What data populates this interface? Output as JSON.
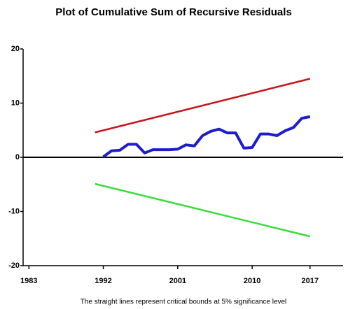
{
  "chart_data": {
    "type": "line",
    "title": "Plot of Cumulative Sum of Recursive Residuals",
    "note": "The straight lines represent critical bounds at 5% significance level",
    "xlim": [
      1982.3,
      2021
    ],
    "xticks": [
      1983,
      1992,
      2001,
      2010,
      2017
    ],
    "ylim": [
      -20,
      20
    ],
    "yticks": [
      -20,
      -10,
      0,
      10,
      20
    ],
    "series": [
      {
        "color": "#c8141e",
        "x": [
          1991,
          2017
        ],
        "values": [
          4.6,
          14.5
        ]
      },
      {
        "color": "#1e1ec8",
        "x": [
          1992,
          1993,
          1994,
          1995,
          1996,
          1997,
          1998,
          1999,
          2000,
          2001,
          2002,
          2003,
          2004,
          2005,
          2006,
          2007,
          2008,
          2009,
          2010,
          2011,
          2012,
          2013,
          2014,
          2015,
          2016,
          2017
        ],
        "values": [
          0.1,
          1.2,
          1.3,
          2.4,
          2.4,
          0.8,
          1.4,
          1.4,
          1.4,
          1.5,
          2.3,
          2.1,
          4.0,
          4.8,
          5.2,
          4.5,
          4.5,
          1.7,
          1.8,
          4.3,
          4.3,
          4.0,
          4.9,
          5.5,
          7.2,
          7.5
        ]
      },
      {
        "color": "#3cdc3c",
        "x": [
          1991,
          2017
        ],
        "values": [
          -4.9,
          -14.6
        ]
      }
    ]
  }
}
